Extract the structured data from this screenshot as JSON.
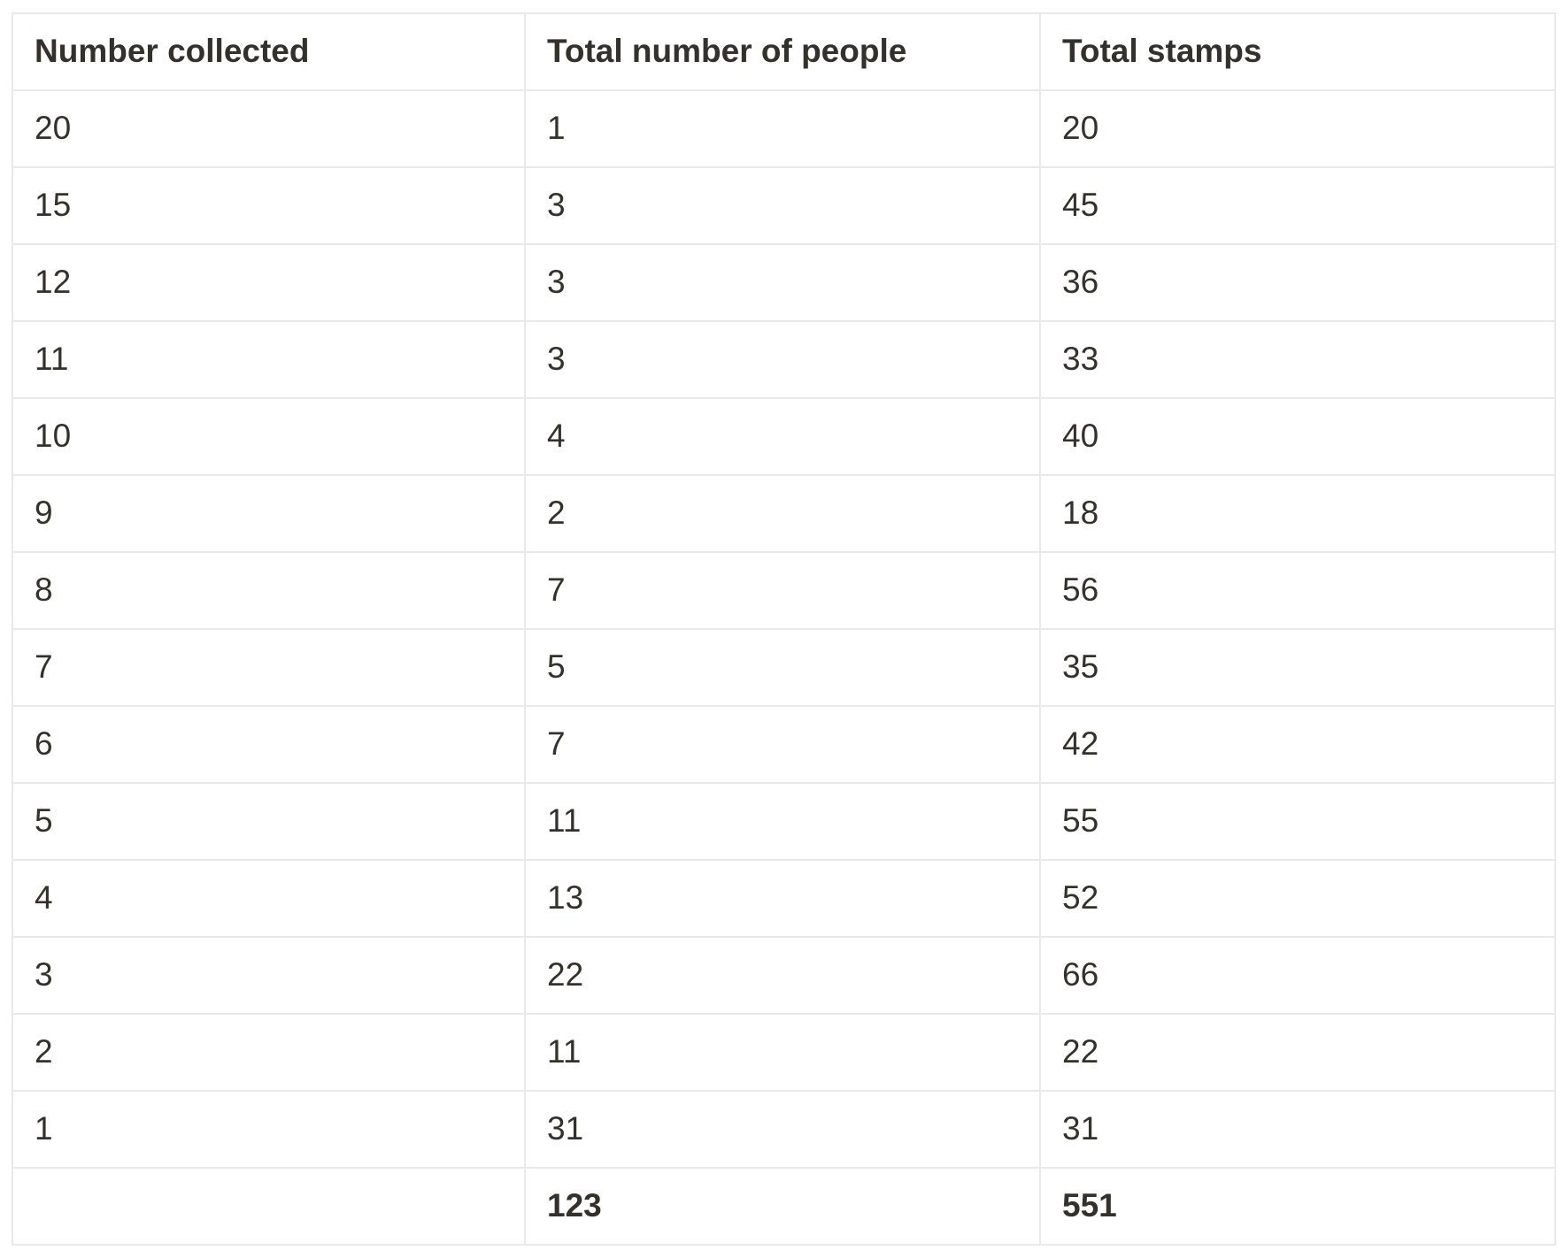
{
  "table": {
    "columns": [
      "Number collected",
      "Total number of people",
      "Total stamps"
    ],
    "rows": [
      [
        "20",
        "1",
        "20"
      ],
      [
        "15",
        "3",
        "45"
      ],
      [
        "12",
        "3",
        "36"
      ],
      [
        "11",
        "3",
        "33"
      ],
      [
        "10",
        "4",
        "40"
      ],
      [
        "9",
        "2",
        "18"
      ],
      [
        "8",
        "7",
        "56"
      ],
      [
        "7",
        "5",
        "35"
      ],
      [
        "6",
        "7",
        "42"
      ],
      [
        "5",
        "11",
        "55"
      ],
      [
        "4",
        "13",
        "52"
      ],
      [
        "3",
        "22",
        "66"
      ],
      [
        "2",
        "11",
        "22"
      ],
      [
        "1",
        "31",
        "31"
      ]
    ],
    "totals": [
      "",
      "123",
      "551"
    ],
    "colors": {
      "text": "#333129",
      "border": "#e9e9e7",
      "background": "#ffffff"
    }
  },
  "chart_data": {
    "type": "table",
    "columns": [
      "Number collected",
      "Total number of people",
      "Total stamps"
    ],
    "rows": [
      [
        20,
        1,
        20
      ],
      [
        15,
        3,
        45
      ],
      [
        12,
        3,
        36
      ],
      [
        11,
        3,
        33
      ],
      [
        10,
        4,
        40
      ],
      [
        9,
        2,
        18
      ],
      [
        8,
        7,
        56
      ],
      [
        7,
        5,
        35
      ],
      [
        6,
        7,
        42
      ],
      [
        5,
        11,
        55
      ],
      [
        4,
        13,
        52
      ],
      [
        3,
        22,
        66
      ],
      [
        2,
        11,
        22
      ],
      [
        1,
        31,
        31
      ]
    ],
    "totals": {
      "total_number_of_people": 123,
      "total_stamps": 551
    }
  }
}
